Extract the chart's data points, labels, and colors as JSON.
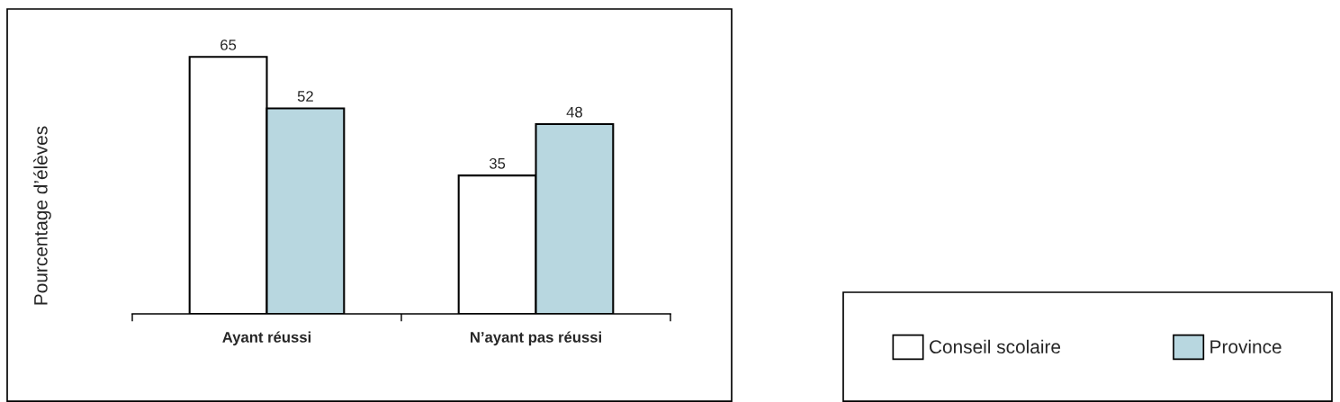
{
  "chart_data": {
    "type": "bar",
    "ylabel": "Pourcentage d’élèves",
    "categories": [
      "Ayant réussi",
      "N’ayant pas réussi"
    ],
    "series": [
      {
        "name": "Conseil scolaire",
        "color": "#ffffff",
        "values": [
          65,
          35
        ]
      },
      {
        "name": "Province",
        "color": "#b8d7e0",
        "values": [
          52,
          48
        ]
      }
    ],
    "data_labels": true,
    "legend": "bottom right",
    "grid": false
  }
}
